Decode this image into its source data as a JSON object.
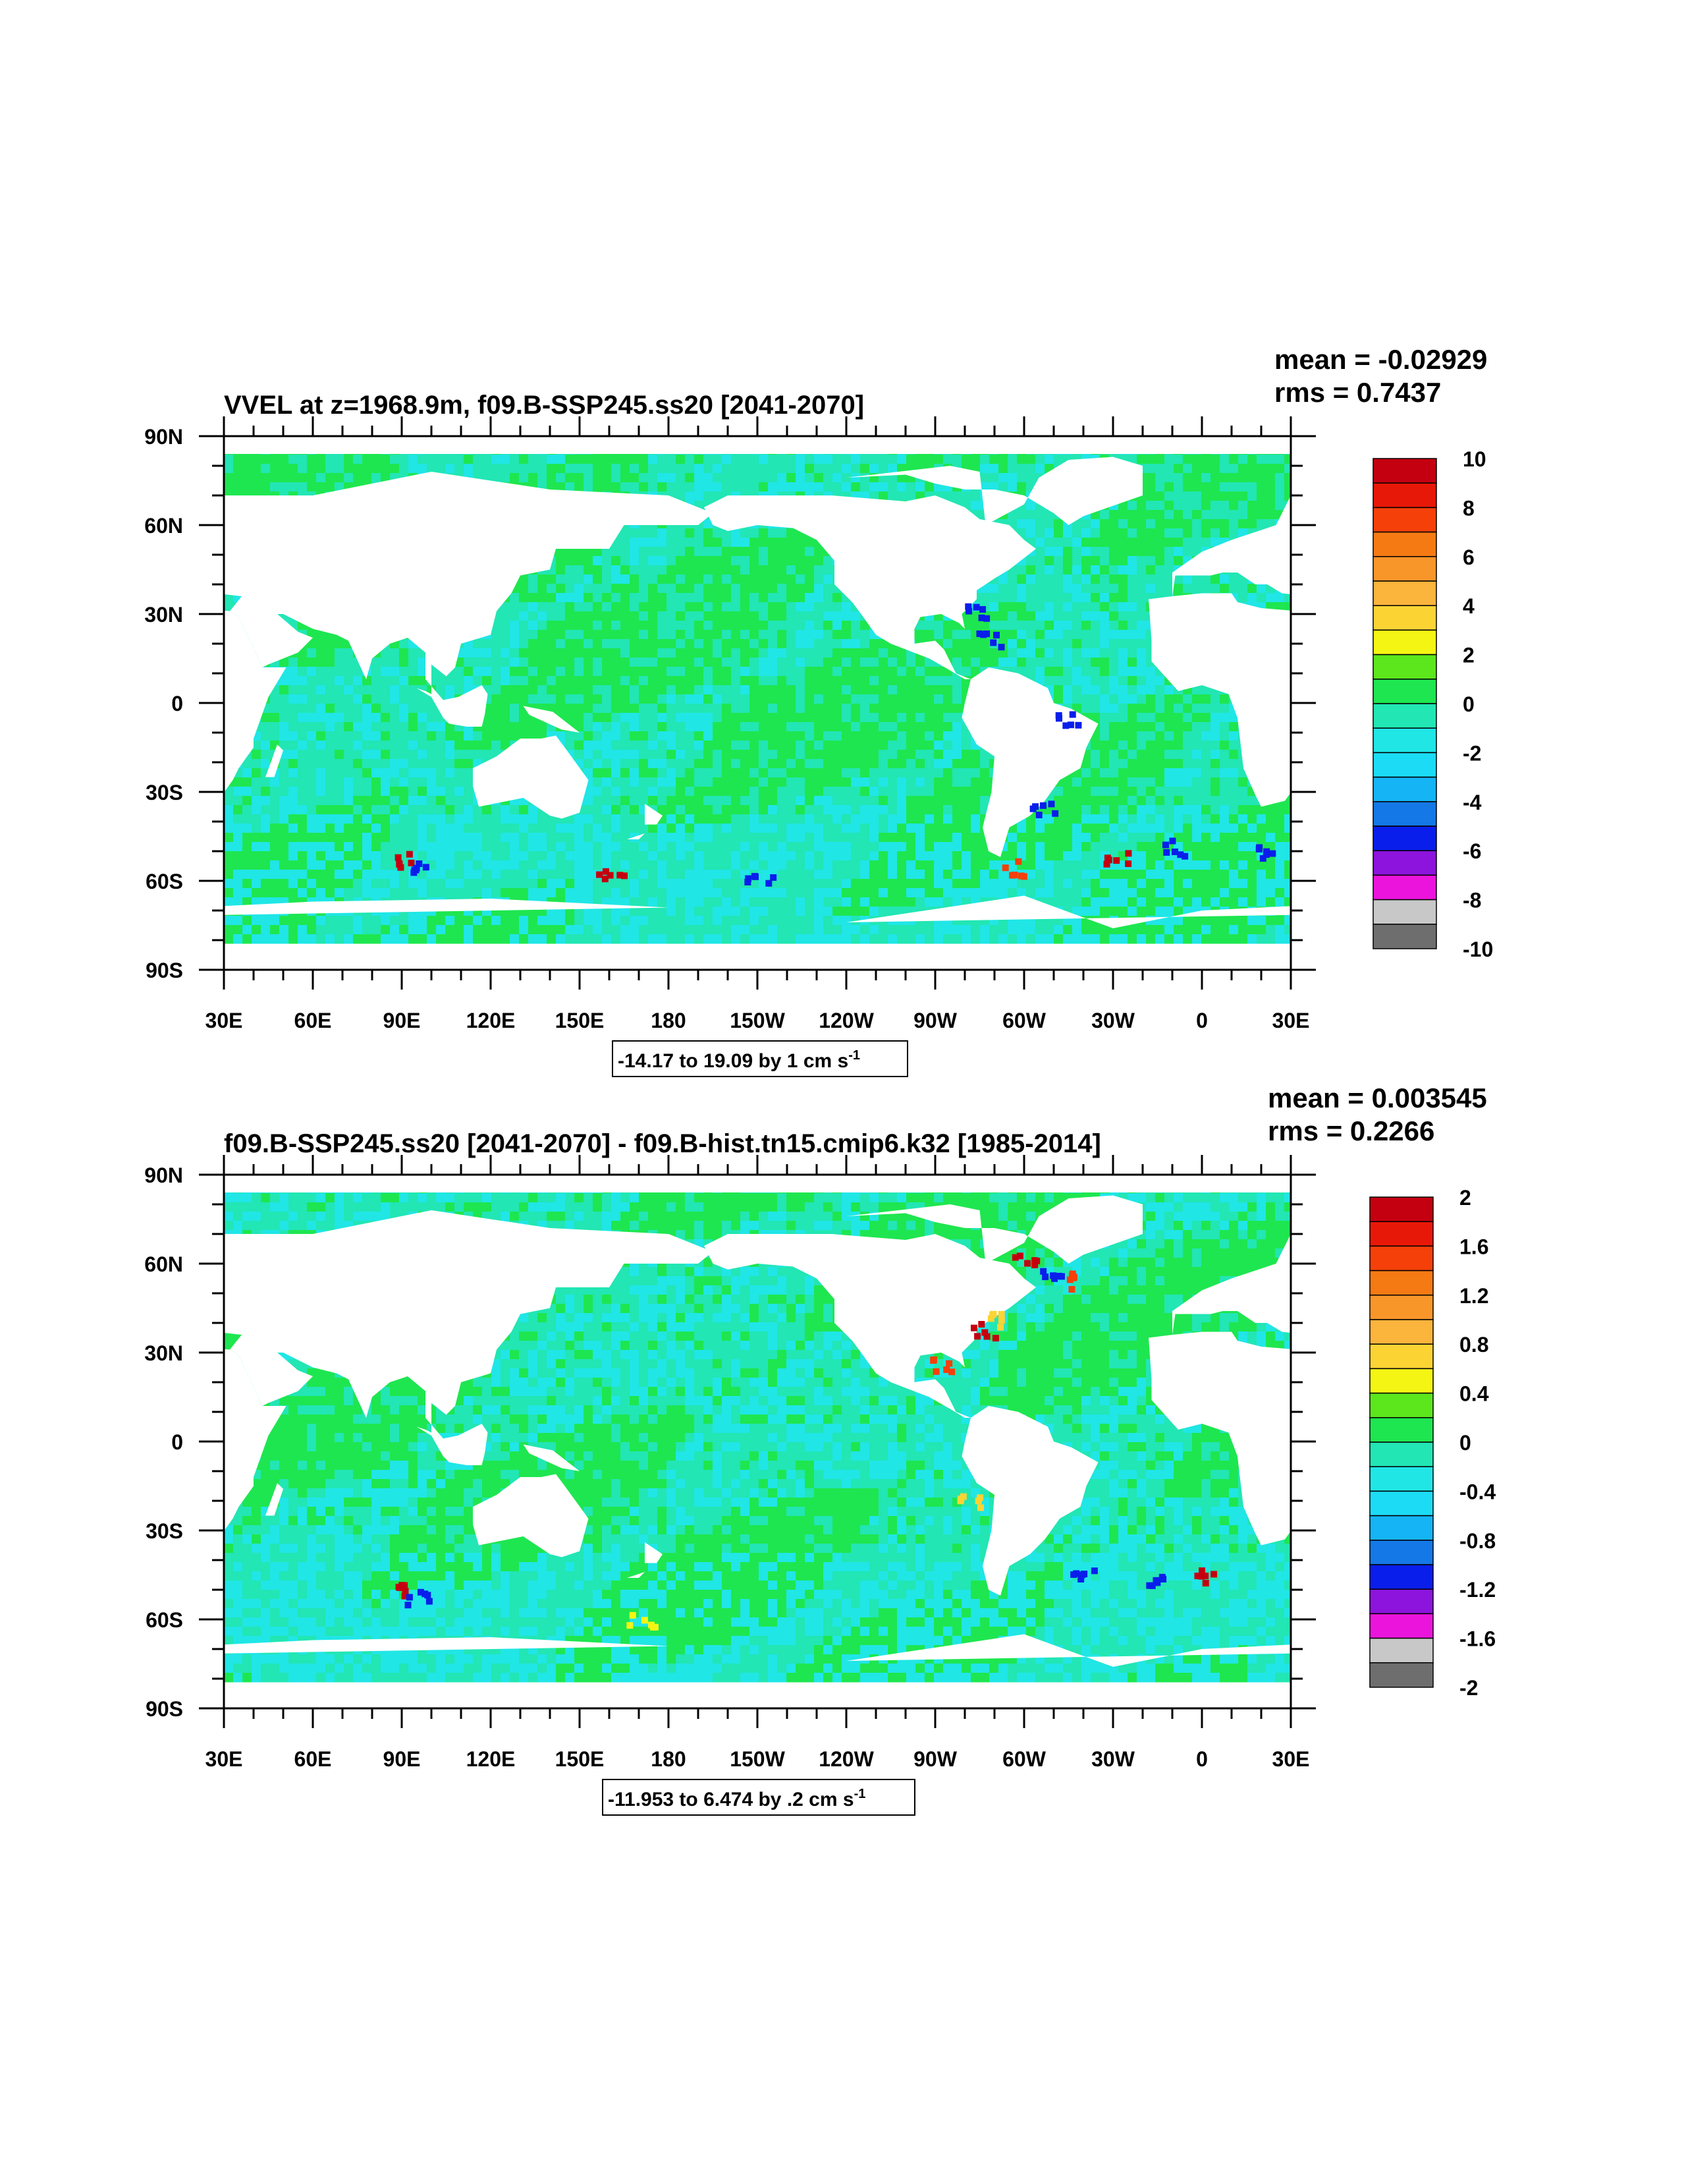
{
  "panels": [
    {
      "title": "VVEL at z=1968.9m, f09.B-SSP245.ss20 [2041-2070]",
      "stats": {
        "mean": "mean = -0.02929",
        "rms": "rms = 0.7437"
      },
      "xticks": [
        "30E",
        "60E",
        "90E",
        "120E",
        "150E",
        "180",
        "150W",
        "120W",
        "90W",
        "60W",
        "30W",
        "0",
        "30E"
      ],
      "yticks": [
        "90N",
        "60N",
        "30N",
        "0",
        "30S",
        "60S",
        "90S"
      ],
      "range_note": {
        "text": "-14.17 to 19.09 by 1 cm s",
        "sup": "-1"
      },
      "colorbar_labels": [
        "10",
        "8",
        "6",
        "4",
        "2",
        "0",
        "-2",
        "-4",
        "-6",
        "-8",
        "-10"
      ],
      "kind": "full"
    },
    {
      "title": "f09.B-SSP245.ss20 [2041-2070] - f09.B-hist.tn15.cmip6.k32 [1985-2014]",
      "stats": {
        "mean": "mean = 0.003545",
        "rms": "rms = 0.2266"
      },
      "xticks": [
        "30E",
        "60E",
        "90E",
        "120E",
        "150E",
        "180",
        "150W",
        "120W",
        "90W",
        "60W",
        "30W",
        "0",
        "30E"
      ],
      "yticks": [
        "90N",
        "60N",
        "30N",
        "0",
        "30S",
        "60S",
        "90S"
      ],
      "range_note": {
        "text": "-11.953 to 6.474 by .2 cm s",
        "sup": "-1"
      },
      "colorbar_labels": [
        "2",
        "1.6",
        "1.2",
        "0.8",
        "0.4",
        "0",
        "-0.4",
        "-0.8",
        "-1.2",
        "-1.6",
        "-2"
      ],
      "kind": "diff"
    }
  ],
  "colorbar_colors": [
    "#c40010",
    "#e81808",
    "#f5400a",
    "#f57a14",
    "#f9962a",
    "#fbb43c",
    "#fbd434",
    "#f5f514",
    "#5ce61c",
    "#1ee650",
    "#22e6b4",
    "#20e6e6",
    "#1cdcf5",
    "#14b4f5",
    "#1478e6",
    "#0a1eeb",
    "#8c14dc",
    "#eb14dc",
    "#c8c8c8",
    "#6e6e6e"
  ],
  "chart_data": [
    {
      "type": "heatmap",
      "title": "VVEL at z=1968.9m, f09.B-SSP245.ss20 [2041-2070]",
      "x_axis_ticks": [
        "30E",
        "60E",
        "90E",
        "120E",
        "150E",
        "180",
        "150W",
        "120W",
        "90W",
        "60W",
        "30W",
        "0",
        "30E"
      ],
      "y_axis_ticks": [
        "90N",
        "60N",
        "30N",
        "0",
        "30S",
        "60S",
        "90S"
      ],
      "mean": -0.02929,
      "rms": 0.7437,
      "data_min": -14.17,
      "data_max": 19.09,
      "contour_interval": 1,
      "units": "cm s-1",
      "colorbar_levels": [
        -10,
        -9,
        -8,
        -7,
        -6,
        -5,
        -4,
        -3,
        -2,
        -1,
        0,
        1,
        2,
        3,
        4,
        5,
        6,
        7,
        8,
        9,
        10
      ],
      "colorbar_labels": [
        "10",
        "8",
        "6",
        "4",
        "2",
        "0",
        "-2",
        "-4",
        "-6",
        "-8",
        "-10"
      ]
    },
    {
      "type": "heatmap",
      "title": "f09.B-SSP245.ss20 [2041-2070] - f09.B-hist.tn15.cmip6.k32 [1985-2014]",
      "x_axis_ticks": [
        "30E",
        "60E",
        "90E",
        "120E",
        "150E",
        "180",
        "150W",
        "120W",
        "90W",
        "60W",
        "30W",
        "0",
        "30E"
      ],
      "y_axis_ticks": [
        "90N",
        "60N",
        "30N",
        "0",
        "30S",
        "60S",
        "90S"
      ],
      "mean": 0.003545,
      "rms": 0.2266,
      "data_min": -11.953,
      "data_max": 6.474,
      "contour_interval": 0.2,
      "units": "cm s-1",
      "colorbar_levels": [
        -2,
        -1.8,
        -1.6,
        -1.4,
        -1.2,
        -1,
        -0.8,
        -0.6,
        -0.4,
        -0.2,
        0,
        0.2,
        0.4,
        0.6,
        0.8,
        1,
        1.2,
        1.4,
        1.6,
        1.8,
        2
      ],
      "colorbar_labels": [
        "2",
        "1.6",
        "1.2",
        "0.8",
        "0.4",
        "0",
        "-0.4",
        "-0.8",
        "-1.2",
        "-1.6",
        "-2"
      ]
    }
  ]
}
